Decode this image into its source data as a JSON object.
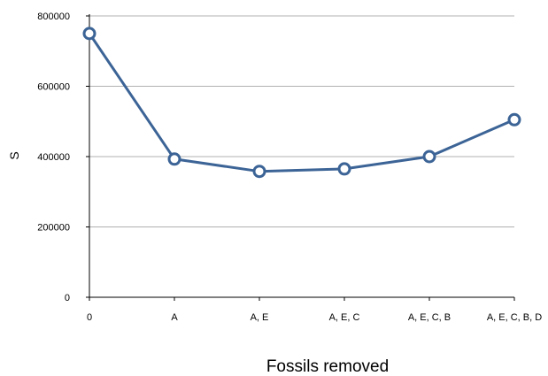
{
  "chart_data": {
    "type": "line",
    "categories": [
      "0",
      "A",
      "A, E",
      "A, E, C",
      "A, E, C, B",
      "A, E, C, B, D"
    ],
    "series": [
      {
        "values": [
          750000,
          393000,
          358000,
          365000,
          400000,
          505000
        ]
      }
    ],
    "xlabel": "Fossils removed",
    "ylabel": "S",
    "ylim": [
      0,
      800000
    ],
    "yticks": [
      "0",
      "200000",
      "400000",
      "600000",
      "800000"
    ],
    "grid": true,
    "legend": "none",
    "colors": {
      "line": "#3c6496",
      "marker_fill": "#ffffff",
      "grid": "#b0b0b0",
      "axis": "#000000"
    }
  }
}
